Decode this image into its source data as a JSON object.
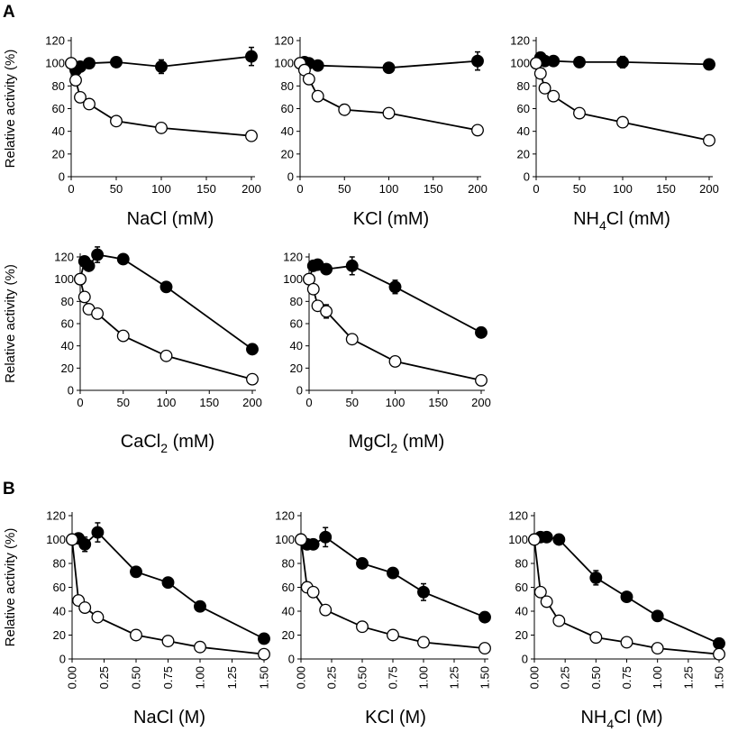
{
  "panel_letters": [
    "A",
    "B"
  ],
  "legend": {
    "open": "open circles",
    "filled": "filled circles"
  },
  "colors": {
    "filled": "#000000",
    "open": "#ffffff",
    "stroke": "#000000"
  },
  "chart_data": [
    {
      "type": "line",
      "panel": "A",
      "title": "",
      "xlabel": "NaCl (mM)",
      "xlabel_main": "NaCl (mM)",
      "xlabel_sub": "",
      "ylabel": "Relative activity (%)",
      "xlim": [
        0,
        200
      ],
      "ylim": [
        0,
        120
      ],
      "xticks": [
        0,
        50,
        100,
        150,
        200
      ],
      "xtick_labels": [
        "0",
        "50",
        "100",
        "150",
        "200"
      ],
      "yticks": [
        0,
        20,
        40,
        60,
        80,
        100,
        120
      ],
      "series": [
        {
          "name": "filled",
          "fill": "#000000",
          "x": [
            0,
            5,
            10,
            20,
            50,
            100,
            200
          ],
          "y": [
            100,
            94,
            97,
            100,
            101,
            97,
            106
          ],
          "err": [
            0,
            0,
            0,
            0,
            3,
            6,
            8
          ]
        },
        {
          "name": "open",
          "fill": "#ffffff",
          "x": [
            0,
            5,
            10,
            20,
            50,
            100,
            200
          ],
          "y": [
            100,
            85,
            70,
            64,
            49,
            43,
            36
          ],
          "err": [
            0,
            0,
            0,
            0,
            0,
            3,
            0
          ]
        }
      ]
    },
    {
      "type": "line",
      "panel": "A",
      "title": "",
      "xlabel": "KCl (mM)",
      "xlabel_main": "KCl (mM)",
      "xlabel_sub": "",
      "ylabel": "",
      "xlim": [
        0,
        200
      ],
      "ylim": [
        0,
        120
      ],
      "xticks": [
        0,
        50,
        100,
        150,
        200
      ],
      "xtick_labels": [
        "0",
        "50",
        "100",
        "150",
        "200"
      ],
      "yticks": [
        0,
        20,
        40,
        60,
        80,
        100,
        120
      ],
      "series": [
        {
          "name": "filled",
          "fill": "#000000",
          "x": [
            0,
            5,
            10,
            20,
            100,
            200
          ],
          "y": [
            100,
            101,
            100,
            98,
            96,
            102
          ],
          "err": [
            0,
            0,
            0,
            4,
            0,
            8
          ]
        },
        {
          "name": "open",
          "fill": "#ffffff",
          "x": [
            0,
            5,
            10,
            20,
            50,
            100,
            200
          ],
          "y": [
            100,
            94,
            86,
            71,
            59,
            56,
            41
          ],
          "err": [
            0,
            0,
            0,
            0,
            0,
            0,
            0
          ]
        }
      ]
    },
    {
      "type": "line",
      "panel": "A",
      "title": "",
      "xlabel": "NH4Cl (mM)",
      "xlabel_main": "NH",
      "xlabel_sub": "4",
      "xlabel_rest": "Cl (mM)",
      "ylabel": "",
      "xlim": [
        0,
        200
      ],
      "ylim": [
        0,
        120
      ],
      "xticks": [
        0,
        50,
        100,
        150,
        200
      ],
      "xtick_labels": [
        "0",
        "50",
        "100",
        "150",
        "200"
      ],
      "yticks": [
        0,
        20,
        40,
        60,
        80,
        100,
        120
      ],
      "series": [
        {
          "name": "filled",
          "fill": "#000000",
          "x": [
            0,
            5,
            10,
            20,
            50,
            100,
            200
          ],
          "y": [
            100,
            105,
            102,
            102,
            101,
            101,
            99
          ],
          "err": [
            0,
            4,
            0,
            0,
            0,
            5,
            0
          ]
        },
        {
          "name": "open",
          "fill": "#ffffff",
          "x": [
            0,
            5,
            10,
            20,
            50,
            100,
            200
          ],
          "y": [
            100,
            91,
            78,
            71,
            56,
            48,
            32
          ],
          "err": [
            0,
            0,
            0,
            0,
            0,
            4,
            0
          ]
        }
      ]
    },
    {
      "type": "line",
      "panel": "A",
      "title": "",
      "xlabel": "CaCl2 (mM)",
      "xlabel_main": "CaCl",
      "xlabel_sub": "2",
      "xlabel_rest": " (mM)",
      "ylabel": "Relative activity (%)",
      "xlim": [
        0,
        200
      ],
      "ylim": [
        0,
        120
      ],
      "xticks": [
        0,
        50,
        100,
        150,
        200
      ],
      "xtick_labels": [
        "0",
        "50",
        "100",
        "150",
        "200"
      ],
      "yticks": [
        0,
        20,
        40,
        60,
        80,
        100,
        120
      ],
      "series": [
        {
          "name": "filled",
          "fill": "#000000",
          "x": [
            0,
            5,
            10,
            20,
            50,
            100,
            200
          ],
          "y": [
            100,
            116,
            112,
            122,
            118,
            93,
            37
          ],
          "err": [
            0,
            0,
            0,
            7,
            0,
            0,
            0
          ]
        },
        {
          "name": "open",
          "fill": "#ffffff",
          "x": [
            0,
            5,
            10,
            20,
            50,
            100,
            200
          ],
          "y": [
            100,
            84,
            73,
            69,
            49,
            31,
            10
          ],
          "err": [
            0,
            0,
            0,
            0,
            0,
            0,
            0
          ]
        }
      ]
    },
    {
      "type": "line",
      "panel": "A",
      "title": "",
      "xlabel": "MgCl2 (mM)",
      "xlabel_main": "MgCl",
      "xlabel_sub": "2",
      "xlabel_rest": " (mM)",
      "ylabel": "",
      "xlim": [
        0,
        200
      ],
      "ylim": [
        0,
        120
      ],
      "xticks": [
        0,
        50,
        100,
        150,
        200
      ],
      "xtick_labels": [
        "0",
        "50",
        "100",
        "150",
        "200"
      ],
      "yticks": [
        0,
        20,
        40,
        60,
        80,
        100,
        120
      ],
      "series": [
        {
          "name": "filled",
          "fill": "#000000",
          "x": [
            0,
            5,
            10,
            20,
            50,
            100,
            200
          ],
          "y": [
            100,
            112,
            113,
            109,
            112,
            93,
            52
          ],
          "err": [
            0,
            0,
            0,
            0,
            8,
            6,
            0
          ]
        },
        {
          "name": "open",
          "fill": "#ffffff",
          "x": [
            0,
            5,
            10,
            20,
            50,
            100,
            200
          ],
          "y": [
            100,
            91,
            76,
            71,
            46,
            26,
            9
          ],
          "err": [
            0,
            0,
            0,
            6,
            0,
            0,
            0
          ]
        }
      ]
    },
    {
      "type": "line",
      "panel": "B",
      "title": "",
      "xlabel": "NaCl (M)",
      "xlabel_main": "NaCl (M)",
      "xlabel_sub": "",
      "ylabel": "Relative activity (%)",
      "xlim": [
        0,
        1.5
      ],
      "ylim": [
        0,
        120
      ],
      "xticks": [
        0,
        0.25,
        0.5,
        0.75,
        1.0,
        1.25,
        1.5
      ],
      "xtick_labels": [
        "0.00",
        "0.25",
        "0.50",
        "0.75",
        "1.00",
        "1.25",
        "1.50"
      ],
      "yticks": [
        0,
        20,
        40,
        60,
        80,
        100,
        120
      ],
      "series": [
        {
          "name": "filled",
          "fill": "#000000",
          "x": [
            0,
            0.05,
            0.1,
            0.2,
            0.5,
            0.75,
            1.0,
            1.5
          ],
          "y": [
            100,
            101,
            96,
            106,
            73,
            64,
            44,
            17
          ],
          "err": [
            0,
            0,
            6,
            8,
            0,
            0,
            0,
            0
          ]
        },
        {
          "name": "open",
          "fill": "#ffffff",
          "x": [
            0,
            0.05,
            0.1,
            0.2,
            0.5,
            0.75,
            1.0,
            1.5
          ],
          "y": [
            100,
            49,
            43,
            35,
            20,
            15,
            10,
            4
          ],
          "err": [
            0,
            0,
            4,
            0,
            0,
            0,
            0,
            0
          ]
        }
      ]
    },
    {
      "type": "line",
      "panel": "B",
      "title": "",
      "xlabel": "KCl (M)",
      "xlabel_main": "KCl (M)",
      "xlabel_sub": "",
      "ylabel": "",
      "xlim": [
        0,
        1.5
      ],
      "ylim": [
        0,
        120
      ],
      "xticks": [
        0,
        0.25,
        0.5,
        0.75,
        1.0,
        1.25,
        1.5
      ],
      "xtick_labels": [
        "0.00",
        "0.25",
        "0.50",
        "0.75",
        "1.00",
        "1.25",
        "1.50"
      ],
      "yticks": [
        0,
        20,
        40,
        60,
        80,
        100,
        120
      ],
      "series": [
        {
          "name": "filled",
          "fill": "#000000",
          "x": [
            0,
            0.05,
            0.1,
            0.2,
            0.5,
            0.75,
            1.0,
            1.5
          ],
          "y": [
            100,
            96,
            96,
            102,
            80,
            72,
            56,
            35
          ],
          "err": [
            0,
            0,
            0,
            8,
            0,
            0,
            7,
            0
          ]
        },
        {
          "name": "open",
          "fill": "#ffffff",
          "x": [
            0,
            0.05,
            0.1,
            0.2,
            0.5,
            0.75,
            1.0,
            1.5
          ],
          "y": [
            100,
            60,
            56,
            41,
            27,
            20,
            14,
            9
          ],
          "err": [
            0,
            0,
            0,
            0,
            0,
            0,
            0,
            0
          ]
        }
      ]
    },
    {
      "type": "line",
      "panel": "B",
      "title": "",
      "xlabel": "NH4Cl (M)",
      "xlabel_main": "NH",
      "xlabel_sub": "4",
      "xlabel_rest": "Cl (M)",
      "ylabel": "",
      "xlim": [
        0,
        1.5
      ],
      "ylim": [
        0,
        120
      ],
      "xticks": [
        0,
        0.25,
        0.5,
        0.75,
        1.0,
        1.25,
        1.5
      ],
      "xtick_labels": [
        "0.00",
        "0.25",
        "0.50",
        "0.75",
        "1.00",
        "1.25",
        "1.50"
      ],
      "yticks": [
        0,
        20,
        40,
        60,
        80,
        100,
        120
      ],
      "series": [
        {
          "name": "filled",
          "fill": "#000000",
          "x": [
            0,
            0.05,
            0.1,
            0.2,
            0.5,
            0.75,
            1.0,
            1.5
          ],
          "y": [
            100,
            102,
            102,
            100,
            68,
            52,
            36,
            13
          ],
          "err": [
            0,
            0,
            0,
            0,
            6,
            0,
            0,
            0
          ]
        },
        {
          "name": "open",
          "fill": "#ffffff",
          "x": [
            0,
            0.05,
            0.1,
            0.2,
            0.5,
            0.75,
            1.0,
            1.5
          ],
          "y": [
            100,
            56,
            48,
            32,
            18,
            14,
            9,
            4
          ],
          "err": [
            0,
            0,
            0,
            0,
            0,
            0,
            0,
            0
          ]
        }
      ]
    }
  ]
}
